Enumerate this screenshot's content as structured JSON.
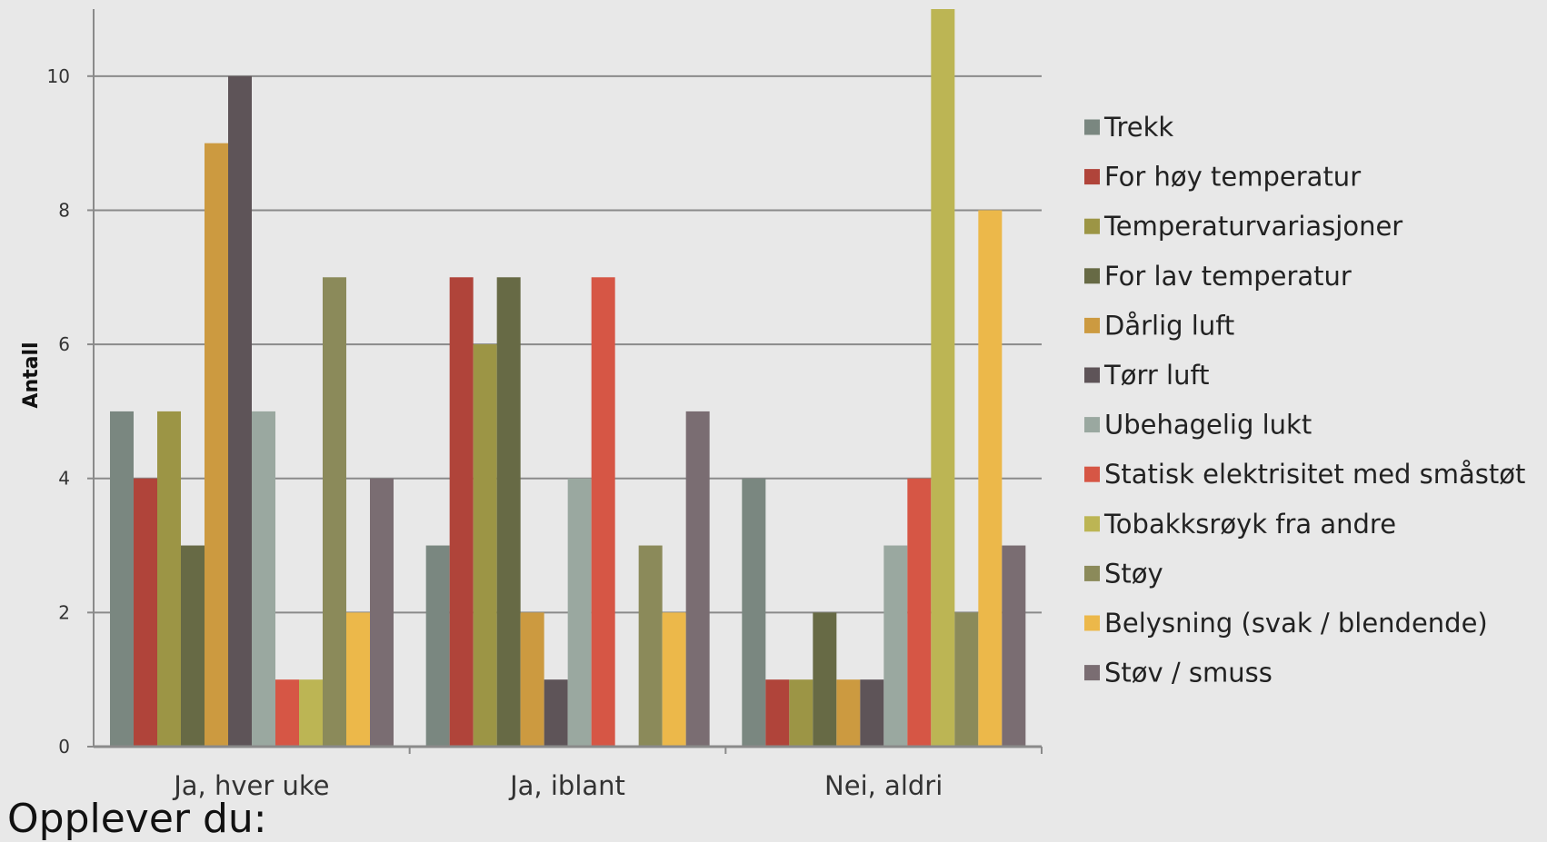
{
  "caption": "Opplever du:",
  "chart_data": {
    "type": "bar",
    "ylabel": "Antall",
    "xlabel": "",
    "ylim": [
      0,
      11
    ],
    "yticks": [
      0,
      2,
      4,
      6,
      8,
      10
    ],
    "grid": true,
    "legend_position": "right",
    "categories": [
      "Ja, hver uke",
      "Ja, iblant",
      "Nei, aldri"
    ],
    "series": [
      {
        "name": "Trekk",
        "color": "#7a8780",
        "values": [
          5,
          3,
          4
        ]
      },
      {
        "name": "For høy temperatur",
        "color": "#b0443a",
        "values": [
          4,
          7,
          1
        ]
      },
      {
        "name": "Temperaturvariasjoner",
        "color": "#9c9545",
        "values": [
          5,
          6,
          1
        ]
      },
      {
        "name": "For lav temperatur",
        "color": "#676a45",
        "values": [
          3,
          7,
          2
        ]
      },
      {
        "name": "Dårlig luft",
        "color": "#cc9a40",
        "values": [
          9,
          2,
          1
        ]
      },
      {
        "name": "Tørr luft",
        "color": "#5e5458",
        "values": [
          10,
          1,
          1
        ]
      },
      {
        "name": "Ubehagelig lukt",
        "color": "#9aa8a0",
        "values": [
          5,
          4,
          3
        ]
      },
      {
        "name": "Statisk elektrisitet med småstøt",
        "color": "#d65645",
        "values": [
          1,
          7,
          4
        ]
      },
      {
        "name": "Tobakksrøyk fra andre",
        "color": "#bcb554",
        "values": [
          1,
          0,
          11
        ]
      },
      {
        "name": "Støy",
        "color": "#8b8a5a",
        "values": [
          7,
          3,
          2
        ]
      },
      {
        "name": "Belysning (svak / blendende)",
        "color": "#ecb84a",
        "values": [
          2,
          2,
          8
        ]
      },
      {
        "name": "Støv / smuss",
        "color": "#7a6d72",
        "values": [
          4,
          5,
          3
        ]
      }
    ]
  }
}
